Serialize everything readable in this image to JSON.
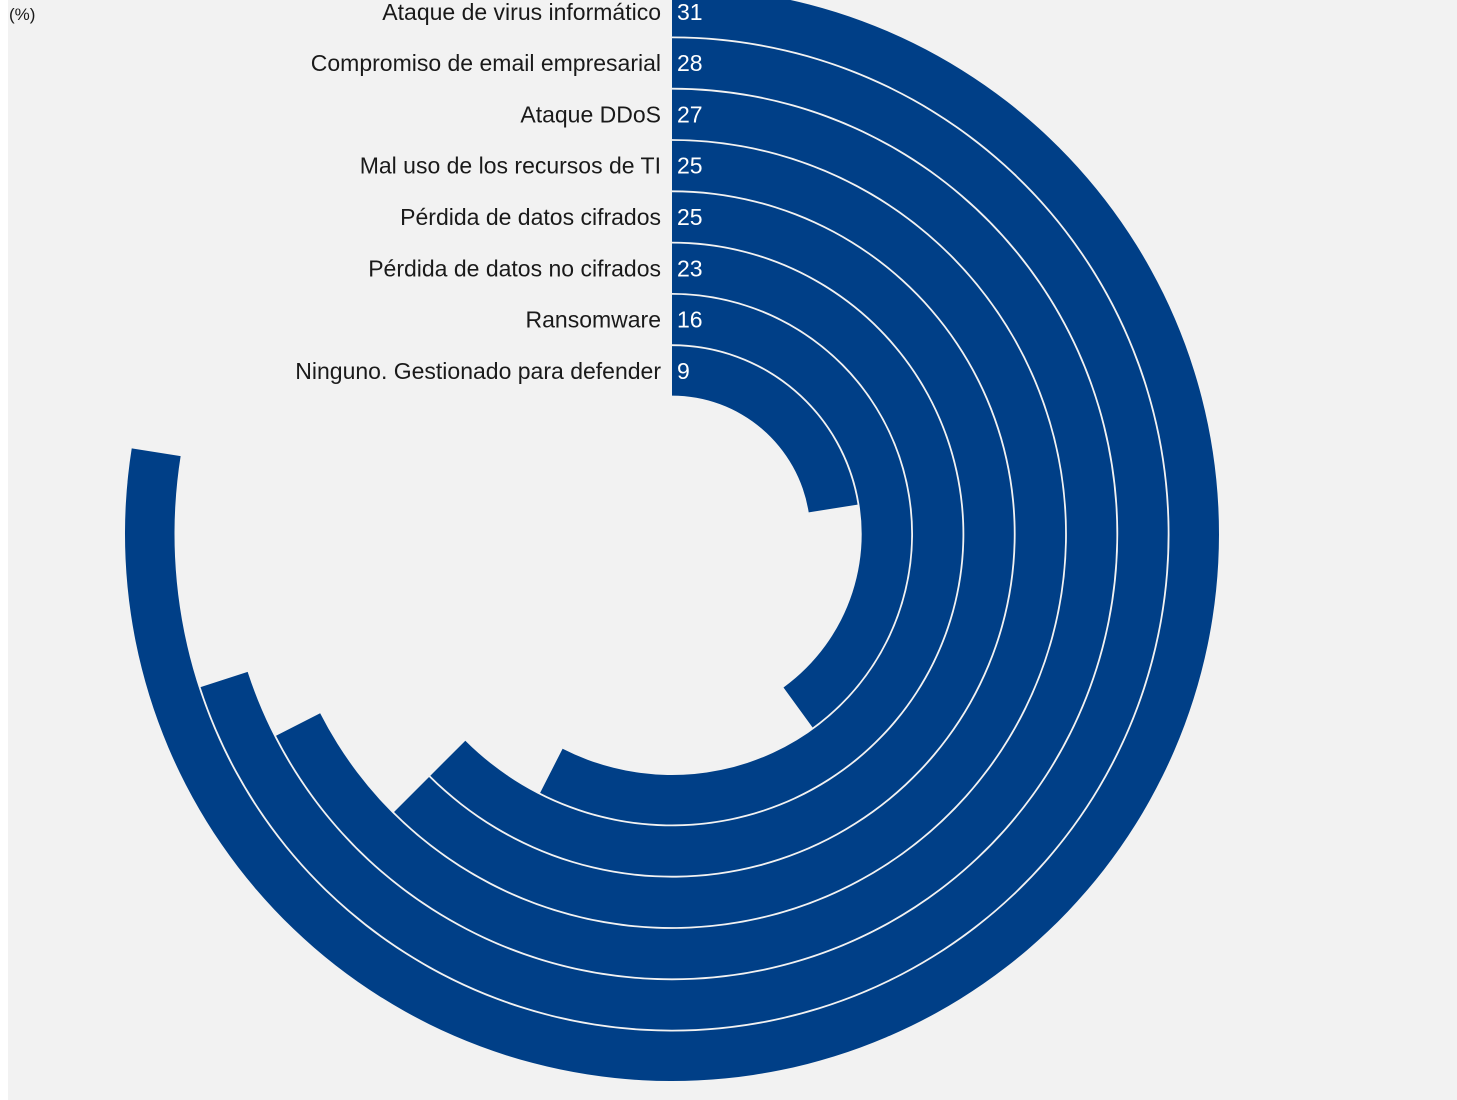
{
  "colors": {
    "background": "#f2f2f2",
    "bar": "#003f87",
    "separator": "#ffffff",
    "text": "#1a1a1a",
    "value_text": "#ffffff"
  },
  "chart_data": {
    "type": "radial-bar",
    "unit_label": "(%)",
    "max_value": 40,
    "categories": [
      "Ataque de virus informático",
      "Compromiso de email empresarial",
      "Ataque DDoS",
      "Mal uso de los recursos de TI",
      "Pérdida de datos cifrados",
      "Pérdida de datos no cifrados",
      "Ransomware",
      "Ninguno. Gestionado para defender"
    ],
    "values": [
      31,
      28,
      27,
      25,
      25,
      23,
      16,
      9
    ]
  }
}
